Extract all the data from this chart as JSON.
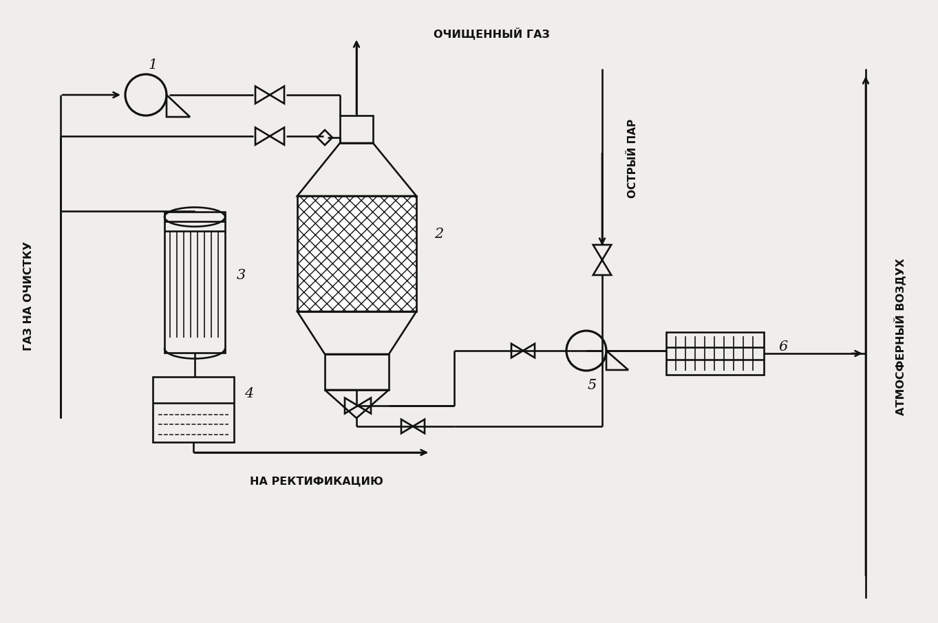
{
  "bg_color": "#f0eeea",
  "line_color": "#111111",
  "lw": 1.9,
  "lw_thick": 2.3,
  "labels": {
    "gas_in": "ГАЗ НА ОЧИСТКУ",
    "clean_gas": "ОЧИЩЕННЫЙ ГАЗ",
    "steam": "ОСТРЫЙ ПАР",
    "atm_air": "АТМОСФЕРНЫЙ ВОЗДУХ",
    "rectification": "НА РЕКТИФИКАЦИЮ",
    "num1": "1",
    "num2": "2",
    "num3": "3",
    "num4": "4",
    "num5": "5",
    "num6": "6"
  },
  "font_size_label": 11.5,
  "font_size_num": 13
}
